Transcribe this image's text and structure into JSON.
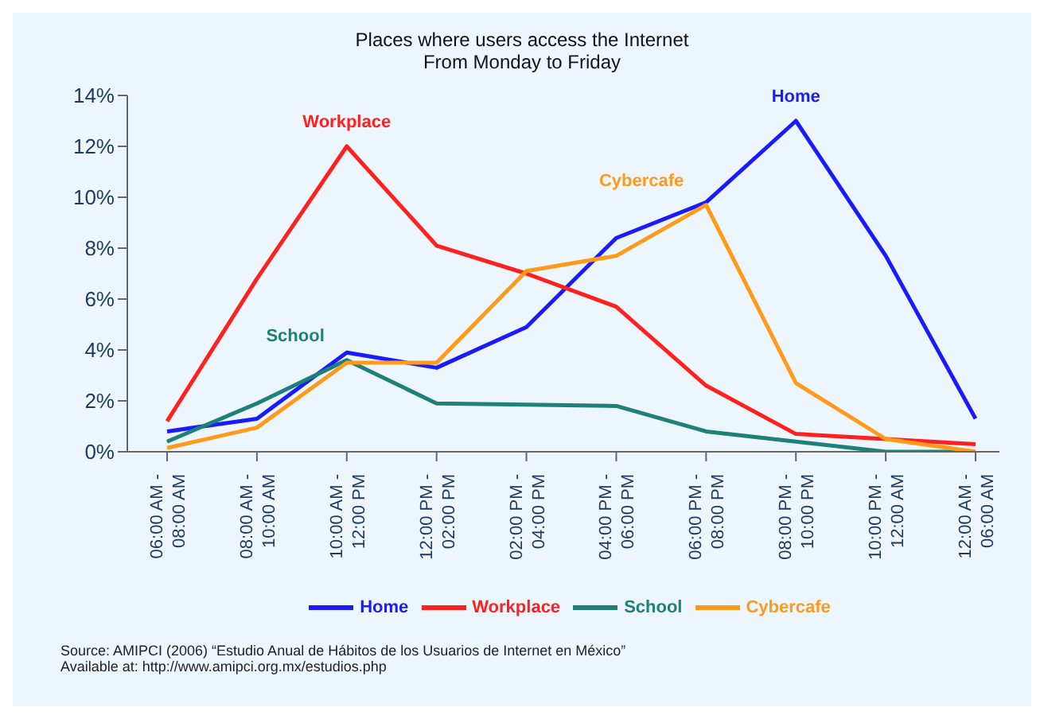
{
  "chart_data": {
    "type": "line",
    "title": "Places where users access the Internet",
    "subtitle": "From Monday to Friday",
    "categories": [
      "06:00 AM -\n08:00 AM",
      "08:00 AM -\n10:00 AM",
      "10:00 AM -\n12:00 PM",
      "12:00 PM -\n02:00 PM",
      "02:00 PM -\n04:00 PM",
      "04:00 PM -\n06:00 PM",
      "06:00 PM -\n08:00 PM",
      "08:00 PM -\n10:00 PM",
      "10:00 PM -\n12:00 AM",
      "12:00 AM -\n06:00 AM"
    ],
    "series": [
      {
        "name": "Home",
        "color": "#1a1aff",
        "values": [
          0.8,
          1.3,
          3.9,
          3.3,
          4.9,
          8.4,
          9.8,
          13.0,
          7.7,
          1.3
        ]
      },
      {
        "name": "Workplace",
        "color": "#ff2020",
        "values": [
          1.2,
          6.8,
          12.0,
          8.1,
          7.0,
          5.7,
          2.6,
          0.7,
          0.5,
          0.3
        ]
      },
      {
        "name": "School",
        "color": "#1e8078",
        "values": [
          0.4,
          1.9,
          3.6,
          1.9,
          1.85,
          1.8,
          0.8,
          0.4,
          0.0,
          0.0
        ]
      },
      {
        "name": "Cybercafe",
        "color": "#ff9a1a",
        "values": [
          0.15,
          0.95,
          3.5,
          3.5,
          7.1,
          7.7,
          9.7,
          2.7,
          0.5,
          0.0
        ]
      }
    ],
    "ylim": [
      0,
      14
    ],
    "yticks": [
      {
        "value": 0,
        "label": "0%"
      },
      {
        "value": 2,
        "label": "2%"
      },
      {
        "value": 4,
        "label": "4%"
      },
      {
        "value": 6,
        "label": "6%"
      },
      {
        "value": 8,
        "label": "8%"
      },
      {
        "value": 10,
        "label": "10%"
      },
      {
        "value": 12,
        "label": "12%"
      },
      {
        "value": 14,
        "label": "14%"
      }
    ],
    "grid": false,
    "legend": "bottom",
    "marker": "none",
    "line_style": "solid",
    "annotations": [
      "Source: AMIPCI (2006) “Estudio Anual de Hábitos de los Usuarios de Internet en México”",
      "Available at: http://www.amipci.org.mx/estudios.php"
    ]
  }
}
